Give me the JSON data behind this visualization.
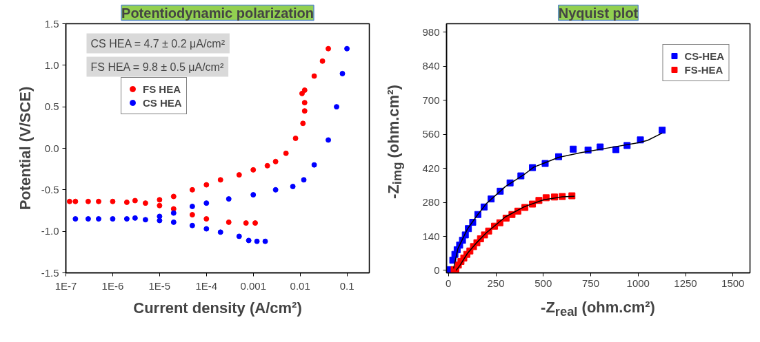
{
  "chart_data": [
    {
      "type": "scatter",
      "title": "Potentiodynamic polarization",
      "xlabel": "Current density (A/cm²)",
      "ylabel": "Potential (V/SCE)",
      "log": "x",
      "marker": "circle",
      "legend": "top left",
      "xlim": [
        1e-07,
        0.3
      ],
      "xticks": [
        {
          "value": 1e-07,
          "label": "1E-7"
        },
        {
          "value": 1e-06,
          "label": "1E-6"
        },
        {
          "value": 1e-05,
          "label": "1E-5"
        },
        {
          "value": 0.0001,
          "label": "1E-4"
        },
        {
          "value": 0.001,
          "label": "0.001"
        },
        {
          "value": 0.01,
          "label": "0.01"
        },
        {
          "value": 0.1,
          "label": "0.1"
        }
      ],
      "ylim": [
        -1.5,
        1.5
      ],
      "yticks": [
        {
          "value": -1.5,
          "label": "-1.5"
        },
        {
          "value": -1.0,
          "label": "-1.0"
        },
        {
          "value": -0.5,
          "label": "-0.5"
        },
        {
          "value": 0,
          "label": "0.0"
        },
        {
          "value": 0.5,
          "label": "0.5"
        },
        {
          "value": 1.0,
          "label": "1.0"
        },
        {
          "value": 1.5,
          "label": "1.5"
        }
      ],
      "annotations": [
        "CS HEA = 4.7 ± 0.2 μA/cm²",
        "FS HEA = 9.8 ± 0.5 μA/cm²"
      ],
      "series": [
        {
          "name": "FS HEA",
          "color": "#ff0000",
          "x": [
            0.0011,
            0.0007,
            0.0003,
            0.0001,
            5e-05,
            2e-05,
            1e-05,
            5e-06,
            2e-06,
            1e-06,
            5e-07,
            3e-07,
            1.6e-07,
            1.2e-07,
            3e-06,
            1e-05,
            2e-05,
            5e-05,
            0.0001,
            0.0002,
            0.0005,
            0.001,
            0.002,
            0.003,
            0.005,
            0.008,
            0.0115,
            0.0125,
            0.0125,
            0.011,
            0.0125,
            0.02,
            0.03,
            0.04
          ],
          "values": [
            -0.9,
            -0.9,
            -0.89,
            -0.85,
            -0.8,
            -0.73,
            -0.69,
            -0.66,
            -0.65,
            -0.64,
            -0.64,
            -0.64,
            -0.64,
            -0.64,
            -0.63,
            -0.62,
            -0.58,
            -0.5,
            -0.44,
            -0.38,
            -0.32,
            -0.26,
            -0.21,
            -0.16,
            -0.06,
            0.12,
            0.3,
            0.45,
            0.55,
            0.66,
            0.7,
            0.87,
            1.05,
            1.2
          ]
        },
        {
          "name": "CS HEA",
          "color": "#0000ff",
          "x": [
            0.0018,
            0.0012,
            0.0008,
            0.0005,
            0.0002,
            0.0001,
            5e-05,
            2e-05,
            1e-05,
            5e-06,
            2e-06,
            1e-06,
            5e-07,
            3e-07,
            1.6e-07,
            3e-06,
            1e-05,
            2e-05,
            5e-05,
            0.0001,
            0.0003,
            0.001,
            0.003,
            0.007,
            0.012,
            0.02,
            0.04,
            0.06,
            0.08,
            0.1
          ],
          "values": [
            -1.12,
            -1.12,
            -1.11,
            -1.06,
            -1.01,
            -0.97,
            -0.93,
            -0.89,
            -0.87,
            -0.86,
            -0.85,
            -0.85,
            -0.85,
            -0.85,
            -0.85,
            -0.84,
            -0.82,
            -0.78,
            -0.7,
            -0.66,
            -0.61,
            -0.56,
            -0.5,
            -0.46,
            -0.38,
            -0.2,
            0.1,
            0.5,
            0.9,
            1.2
          ]
        }
      ]
    },
    {
      "type": "scatter",
      "title": "Nyquist plot",
      "xlabel": "-Z$_{real}$ (ohm.cm²)",
      "ylabel": "-Z$_{img}$ (ohm.cm²)",
      "marker": "square",
      "legend": "top right",
      "xlim": [
        -10,
        1590
      ],
      "xticks": [
        0,
        250,
        500,
        750,
        1000,
        1250,
        1500
      ],
      "ylim": [
        -10,
        1015
      ],
      "yticks": [
        0,
        140,
        280,
        420,
        560,
        700,
        840,
        980
      ],
      "series": [
        {
          "name": "CS-HEA",
          "color": "#0000ff",
          "x": [
            1127,
            1012,
            942,
            883,
            800,
            736,
            658,
            581,
            510,
            443,
            382,
            325,
            273,
            225,
            188,
            155,
            128,
            105,
            89,
            74,
            59,
            46,
            34,
            23,
            12,
            4
          ],
          "values": [
            577,
            537,
            514,
            497,
            508,
            495,
            499,
            468,
            440,
            423,
            389,
            360,
            326,
            294,
            261,
            230,
            198,
            172,
            146,
            124,
            104,
            85,
            66,
            42,
            null,
            3
          ]
        },
        {
          "name": "FS-HEA",
          "color": "#ff0000",
          "x": [
            651,
            600,
            559,
            515,
            477,
            443,
            403,
            366,
            335,
            304,
            271,
            243,
            212,
            190,
            169,
            150,
            132,
            113,
            97,
            81,
            66,
            52,
            39,
            30
          ],
          "values": [
            307,
            304,
            302,
            299,
            288,
            273,
            259,
            244,
            230,
            215,
            196,
            182,
            162,
            146,
            130,
            114,
            98,
            80,
            66,
            51,
            37,
            22,
            null,
            3
          ]
        },
        {
          "type": "line",
          "marker": "none",
          "color": "#000000",
          "x": [
            27,
            50,
            100,
            150,
            200,
            300,
            400,
            450,
            500,
            580,
            700,
            850,
            1000,
            1050,
            1127
          ],
          "values": [
            8,
            90,
            170,
            225,
            275,
            345,
            395,
            425,
            440,
            465,
            485,
            505,
            525,
            535,
            565
          ]
        },
        {
          "type": "line",
          "marker": "none",
          "color": "#000000",
          "x": [
            40,
            60,
            100,
            150,
            200,
            300,
            400,
            500,
            600,
            665
          ],
          "values": [
            0,
            20,
            70,
            115,
            155,
            220,
            262,
            290,
            303,
            305
          ]
        }
      ]
    }
  ]
}
